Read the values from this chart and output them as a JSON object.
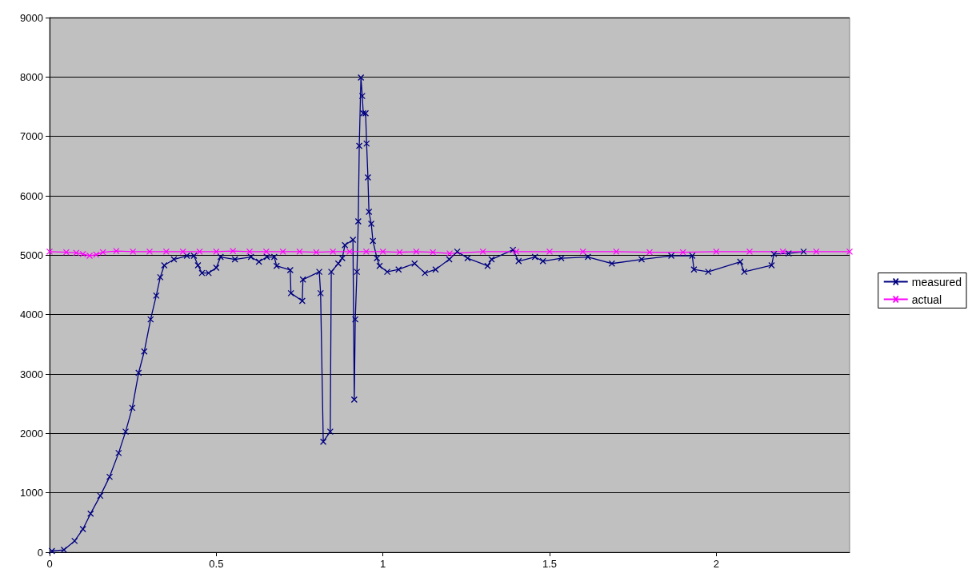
{
  "chart_data": {
    "type": "line",
    "xlim": [
      0,
      2.4
    ],
    "xticks": [
      0,
      0.5,
      1,
      1.5,
      2
    ],
    "ylim": [
      0,
      9000
    ],
    "yticks": [
      0,
      1000,
      2000,
      3000,
      4000,
      5000,
      6000,
      7000,
      8000,
      9000
    ],
    "grid": "y",
    "legend": "right",
    "marker": "cross",
    "line_style": "solid",
    "series": [
      {
        "name": "measured",
        "color": "#000080",
        "x": [
          0.007,
          0.043,
          0.075,
          0.1,
          0.123,
          0.152,
          0.18,
          0.207,
          0.228,
          0.248,
          0.267,
          0.284,
          0.303,
          0.32,
          0.332,
          0.344,
          0.373,
          0.412,
          0.433,
          0.445,
          0.457,
          0.477,
          0.5,
          0.513,
          0.556,
          0.604,
          0.628,
          0.652,
          0.674,
          0.681,
          0.722,
          0.724,
          0.758,
          0.76,
          0.809,
          0.813,
          0.821,
          0.842,
          0.845,
          0.866,
          0.878,
          0.886,
          0.91,
          0.914,
          0.917,
          0.922,
          0.926,
          0.929,
          0.934,
          0.938,
          0.941,
          0.948,
          0.951,
          0.955,
          0.958,
          0.965,
          0.97,
          0.982,
          0.99,
          1.013,
          1.047,
          1.095,
          1.126,
          1.158,
          1.199,
          1.223,
          1.254,
          1.314,
          1.326,
          1.39,
          1.407,
          1.456,
          1.48,
          1.535,
          1.615,
          1.687,
          1.776,
          1.865,
          1.928,
          1.933,
          1.976,
          2.072,
          2.084,
          2.166,
          2.173,
          2.217,
          2.262
        ],
        "values": [
          20,
          40,
          190,
          390,
          650,
          950,
          1270,
          1670,
          2030,
          2430,
          3020,
          3380,
          3920,
          4320,
          4630,
          4830,
          4930,
          4990,
          4990,
          4830,
          4700,
          4700,
          4790,
          4970,
          4930,
          4970,
          4890,
          4970,
          4970,
          4820,
          4750,
          4360,
          4230,
          4590,
          4720,
          4360,
          1860,
          2030,
          4720,
          4860,
          4950,
          5170,
          5260,
          2570,
          3920,
          4720,
          5570,
          6840,
          7990,
          7680,
          7390,
          7390,
          6880,
          6310,
          5730,
          5530,
          5240,
          4950,
          4820,
          4720,
          4760,
          4860,
          4700,
          4760,
          4930,
          5060,
          4950,
          4820,
          4930,
          5090,
          4900,
          4970,
          4900,
          4950,
          4970,
          4860,
          4930,
          4990,
          4990,
          4760,
          4720,
          4890,
          4720,
          4830,
          5020,
          5030,
          5060
        ]
      },
      {
        "name": "actual",
        "color": "#ff00ff",
        "x": [
          0,
          0.05,
          0.08,
          0.1,
          0.12,
          0.14,
          0.16,
          0.2,
          0.25,
          0.3,
          0.35,
          0.4,
          0.45,
          0.5,
          0.55,
          0.6,
          0.65,
          0.7,
          0.75,
          0.8,
          0.85,
          0.9,
          0.95,
          1,
          1.05,
          1.1,
          1.15,
          1.2,
          1.3,
          1.4,
          1.5,
          1.6,
          1.7,
          1.8,
          1.9,
          2,
          2.1,
          2.2,
          2.3,
          2.4
        ],
        "values": [
          5060,
          5050,
          5040,
          5020,
          4990,
          5010,
          5050,
          5070,
          5060,
          5060,
          5060,
          5060,
          5060,
          5060,
          5070,
          5060,
          5060,
          5060,
          5060,
          5050,
          5060,
          5060,
          5060,
          5060,
          5050,
          5060,
          5050,
          5030,
          5060,
          5060,
          5060,
          5060,
          5060,
          5050,
          5050,
          5060,
          5060,
          5060,
          5060,
          5060
        ]
      }
    ]
  }
}
